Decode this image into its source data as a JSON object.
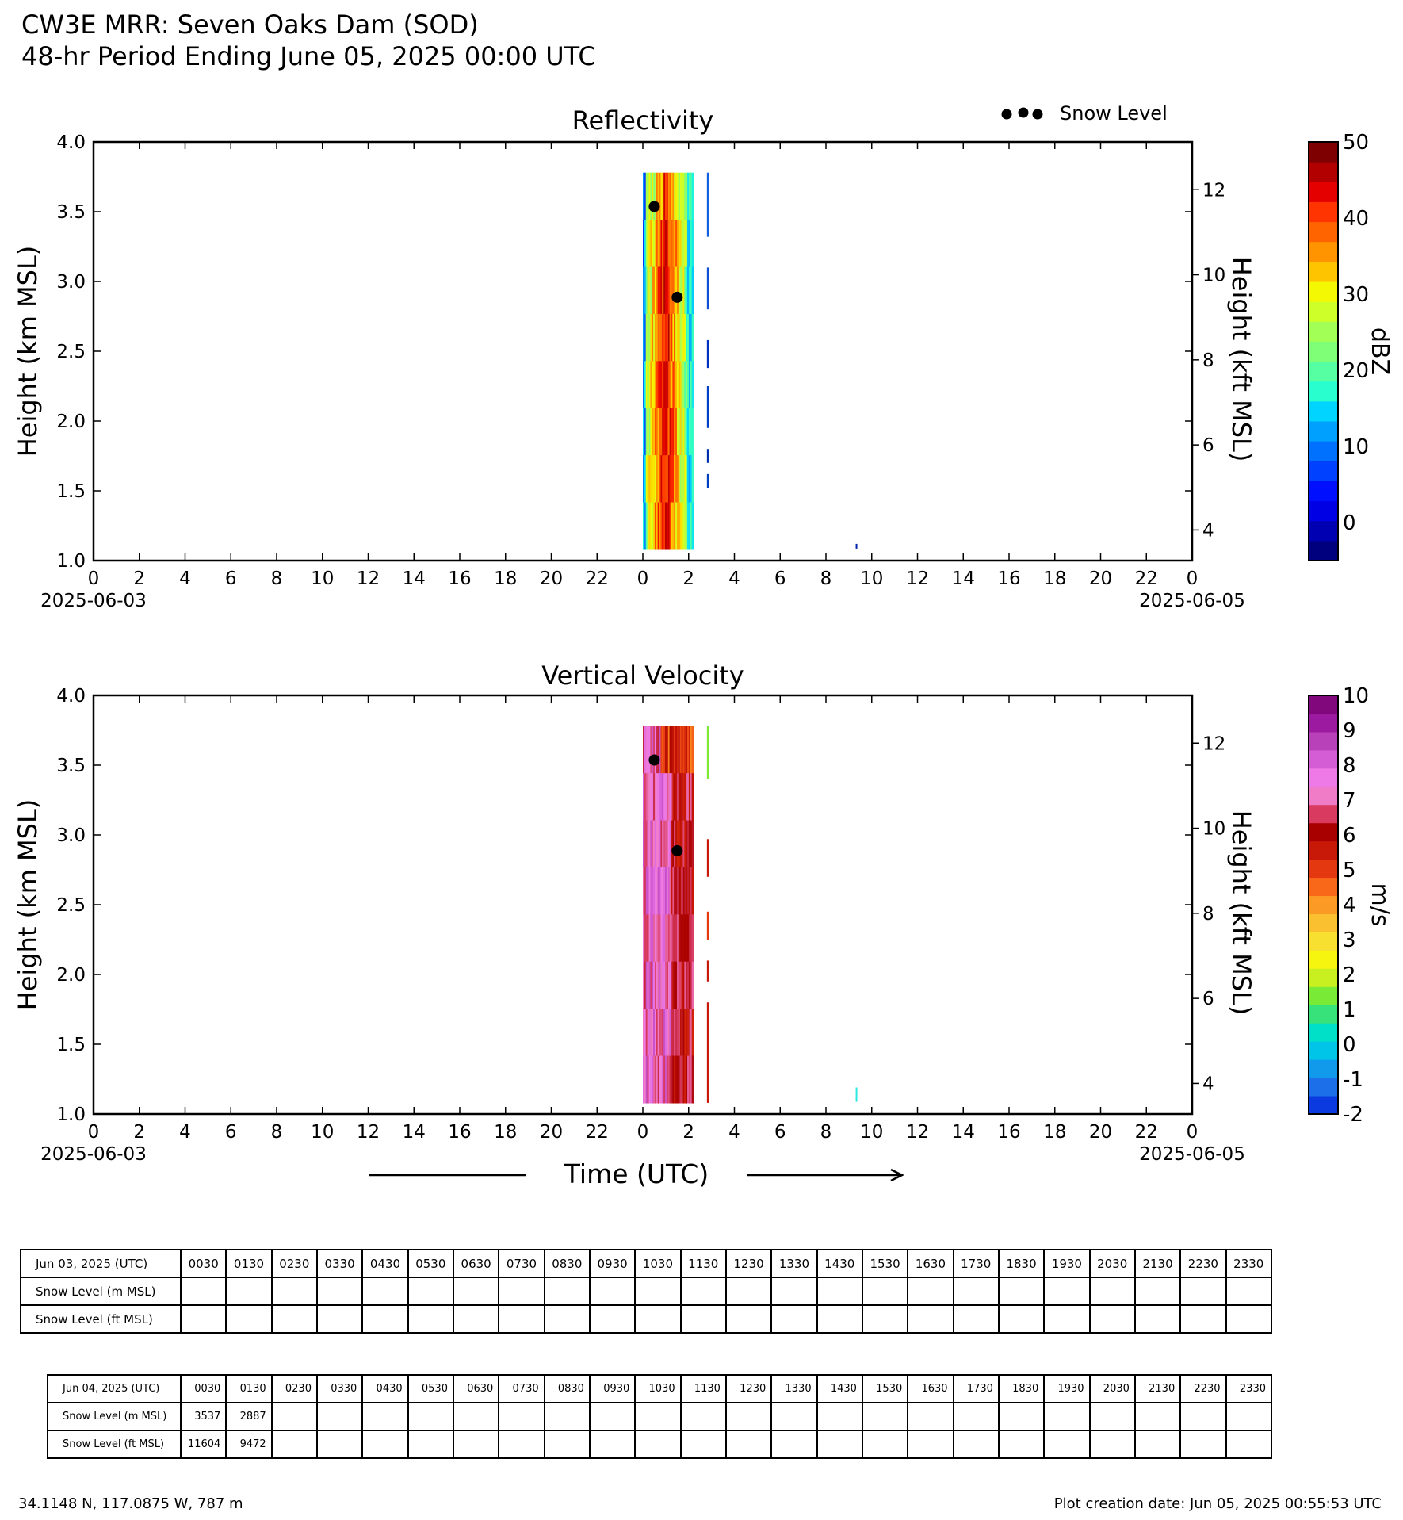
{
  "header": {
    "title": "CW3E MRR: Seven Oaks Dam (SOD)",
    "subtitle": "48-hr Period Ending June 05, 2025 00:00 UTC"
  },
  "legend": {
    "label": "Snow Level",
    "placement": "top-right"
  },
  "colors": {
    "snow_level_marker": "#000000"
  },
  "chart_data": [
    {
      "type": "heatmap",
      "title": "Reflectivity",
      "xlabel": "",
      "ylabel": "Height (km MSL)",
      "y2label": "Height (kft MSL)",
      "ylim": [
        1.0,
        4.0
      ],
      "xlim_hours": [
        0,
        48
      ],
      "yticks": [
        "1.0",
        "1.5",
        "2.0",
        "2.5",
        "3.0",
        "3.5",
        "4.0"
      ],
      "y2ticks": [
        "4",
        "6",
        "8",
        "10",
        "12"
      ],
      "xticks": [
        "0",
        "2",
        "4",
        "6",
        "8",
        "10",
        "12",
        "14",
        "16",
        "18",
        "20",
        "22",
        "0",
        "2",
        "4",
        "6",
        "8",
        "10",
        "12",
        "14",
        "16",
        "18",
        "20",
        "22",
        "0"
      ],
      "dates": [
        "2025-06-03",
        "2025-06-05"
      ],
      "colorbar": {
        "label": "dBZ",
        "min": -5,
        "max": 50,
        "ticks": [
          "0",
          "10",
          "20",
          "30",
          "40",
          "50"
        ],
        "colors": [
          "#00007f",
          "#0000b2",
          "#0000e5",
          "#0010ff",
          "#0040ff",
          "#0070ff",
          "#00a0ff",
          "#00d4ff",
          "#29ffce",
          "#55ffa2",
          "#7fff77",
          "#a2ff55",
          "#ceff29",
          "#f4f802",
          "#ffc400",
          "#ff9400",
          "#ff6400",
          "#ff3400",
          "#e50000",
          "#b20000",
          "#7f0000"
        ]
      },
      "data_region": {
        "x_hours": [
          24.0,
          26.2
        ],
        "height_km": [
          1.08,
          3.78
        ],
        "max_dbz_approx": 45
      },
      "snow_level_points": [
        {
          "time": "2025-06-04 00:30",
          "height_km": 3.537
        },
        {
          "time": "2025-06-04 01:30",
          "height_km": 2.887
        }
      ],
      "grid": false
    },
    {
      "type": "heatmap",
      "title": "Vertical Velocity",
      "xlabel": "Time (UTC)",
      "ylabel": "Height (km MSL)",
      "y2label": "Height (kft MSL)",
      "ylim": [
        1.0,
        4.0
      ],
      "xlim_hours": [
        0,
        48
      ],
      "yticks": [
        "1.0",
        "1.5",
        "2.0",
        "2.5",
        "3.0",
        "3.5",
        "4.0"
      ],
      "y2ticks": [
        "4",
        "6",
        "8",
        "10",
        "12"
      ],
      "xticks": [
        "0",
        "2",
        "4",
        "6",
        "8",
        "10",
        "12",
        "14",
        "16",
        "18",
        "20",
        "22",
        "0",
        "2",
        "4",
        "6",
        "8",
        "10",
        "12",
        "14",
        "16",
        "18",
        "20",
        "22",
        "0"
      ],
      "dates": [
        "2025-06-03",
        "2025-06-05"
      ],
      "colorbar": {
        "label": "m/s",
        "min": -2,
        "max": 10,
        "ticks": [
          "-2",
          "-1",
          "0",
          "1",
          "2",
          "3",
          "4",
          "5",
          "6",
          "7",
          "8",
          "9",
          "10"
        ],
        "colors": [
          "#0a3ae0",
          "#1c6fe8",
          "#1199ec",
          "#00c4e8",
          "#00e0c8",
          "#37e27a",
          "#79ea35",
          "#c8f020",
          "#f5f510",
          "#f8e030",
          "#fbc030",
          "#fb9a25",
          "#f86818",
          "#e43810",
          "#c81808",
          "#a80000",
          "#d83a60",
          "#f07cc8",
          "#ee7ae8",
          "#d45cd4",
          "#b840b8",
          "#9c1aa0",
          "#80087c"
        ]
      },
      "data_region": {
        "x_hours": [
          24.0,
          26.2
        ],
        "height_km": [
          1.08,
          3.78
        ]
      },
      "snow_level_points": [
        {
          "time": "2025-06-04 00:30",
          "height_km": 3.537
        },
        {
          "time": "2025-06-04 01:30",
          "height_km": 2.887
        }
      ],
      "grid": false
    }
  ],
  "table1": {
    "date_label": "Jun 03, 2025 (UTC)",
    "times": [
      "0030",
      "0130",
      "0230",
      "0330",
      "0430",
      "0530",
      "0630",
      "0730",
      "0830",
      "0930",
      "1030",
      "1130",
      "1230",
      "1330",
      "1430",
      "1530",
      "1630",
      "1730",
      "1830",
      "1930",
      "2030",
      "2130",
      "2230",
      "2330"
    ],
    "rows": [
      {
        "label": "Snow Level (m MSL)",
        "values": [
          "",
          "",
          "",
          "",
          "",
          "",
          "",
          "",
          "",
          "",
          "",
          "",
          "",
          "",
          "",
          "",
          "",
          "",
          "",
          "",
          "",
          "",
          "",
          ""
        ]
      },
      {
        "label": "Snow Level (ft MSL)",
        "values": [
          "",
          "",
          "",
          "",
          "",
          "",
          "",
          "",
          "",
          "",
          "",
          "",
          "",
          "",
          "",
          "",
          "",
          "",
          "",
          "",
          "",
          "",
          "",
          ""
        ]
      }
    ]
  },
  "table2": {
    "date_label": "Jun 04, 2025 (UTC)",
    "times": [
      "0030",
      "0130",
      "0230",
      "0330",
      "0430",
      "0530",
      "0630",
      "0730",
      "0830",
      "0930",
      "1030",
      "1130",
      "1230",
      "1330",
      "1430",
      "1530",
      "1630",
      "1730",
      "1830",
      "1930",
      "2030",
      "2130",
      "2230",
      "2330"
    ],
    "rows": [
      {
        "label": "Snow Level (m MSL)",
        "values": [
          "3537",
          "2887",
          "",
          "",
          "",
          "",
          "",
          "",
          "",
          "",
          "",
          "",
          "",
          "",
          "",
          "",
          "",
          "",
          "",
          "",
          "",
          "",
          "",
          ""
        ]
      },
      {
        "label": "Snow Level (ft MSL)",
        "values": [
          "11604",
          "9472",
          "",
          "",
          "",
          "",
          "",
          "",
          "",
          "",
          "",
          "",
          "",
          "",
          "",
          "",
          "",
          "",
          "",
          "",
          "",
          "",
          "",
          ""
        ]
      }
    ]
  },
  "footer": {
    "location": "34.1148 N, 117.0875 W, 787 m",
    "created": "Plot creation date: Jun 05, 2025 00:55:53 UTC"
  }
}
